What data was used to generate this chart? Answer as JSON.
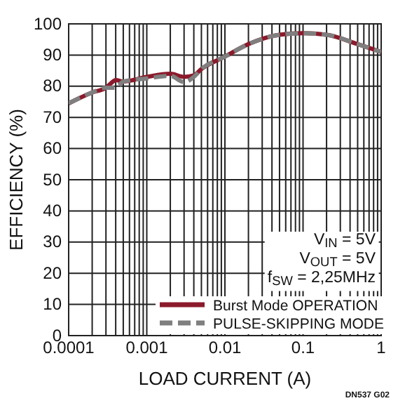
{
  "chart_data": {
    "type": "line",
    "xlabel": "LOAD CURRENT (A)",
    "ylabel": "EFFICIENCY (%)",
    "log": "x",
    "grid": true,
    "legend": "bottom right",
    "line_style": "solid",
    "marker": "none",
    "xlim": [
      0.0001,
      1
    ],
    "ylim": [
      0,
      100
    ],
    "xticks": [
      {
        "value": 0.0001,
        "label": "0.0001"
      },
      {
        "value": 0.0002,
        "label": null
      },
      {
        "value": 0.0003,
        "label": null
      },
      {
        "value": 0.0004,
        "label": null
      },
      {
        "value": 0.0005,
        "label": null
      },
      {
        "value": 0.0006,
        "label": null
      },
      {
        "value": 0.0007,
        "label": null
      },
      {
        "value": 0.0008,
        "label": null
      },
      {
        "value": 0.0009,
        "label": null
      },
      {
        "value": 0.001,
        "label": "0.001"
      },
      {
        "value": 0.002,
        "label": null
      },
      {
        "value": 0.003,
        "label": null
      },
      {
        "value": 0.004,
        "label": null
      },
      {
        "value": 0.005,
        "label": null
      },
      {
        "value": 0.006,
        "label": null
      },
      {
        "value": 0.007,
        "label": null
      },
      {
        "value": 0.008,
        "label": null
      },
      {
        "value": 0.009,
        "label": null
      },
      {
        "value": 0.01,
        "label": "0.01"
      },
      {
        "value": 0.02,
        "label": null
      },
      {
        "value": 0.03,
        "label": null
      },
      {
        "value": 0.04,
        "label": null
      },
      {
        "value": 0.05,
        "label": null
      },
      {
        "value": 0.06,
        "label": null
      },
      {
        "value": 0.07,
        "label": null
      },
      {
        "value": 0.08,
        "label": null
      },
      {
        "value": 0.09,
        "label": null
      },
      {
        "value": 0.1,
        "label": "0.1"
      },
      {
        "value": 0.2,
        "label": null
      },
      {
        "value": 0.3,
        "label": null
      },
      {
        "value": 0.4,
        "label": null
      },
      {
        "value": 0.5,
        "label": null
      },
      {
        "value": 0.6,
        "label": null
      },
      {
        "value": 0.7,
        "label": null
      },
      {
        "value": 0.8,
        "label": null
      },
      {
        "value": 0.9,
        "label": null
      },
      {
        "value": 1,
        "label": "1"
      }
    ],
    "yticks": [
      0,
      10,
      20,
      30,
      40,
      50,
      60,
      70,
      80,
      90,
      100
    ],
    "series": [
      {
        "name": "Burst Mode OPERATION",
        "color": "#8b1a2b",
        "x": [
          0.0001,
          0.0002,
          0.0003,
          0.00035,
          0.0004,
          0.0005,
          0.001,
          0.002,
          0.003,
          0.004,
          0.005,
          0.01,
          0.02,
          0.05,
          0.1,
          0.2,
          0.5,
          1
        ],
        "values": [
          74.5,
          78,
          79.5,
          81,
          82,
          81.5,
          83,
          84,
          83,
          83.5,
          85.5,
          89.5,
          93.5,
          96.5,
          97,
          96.5,
          93.5,
          91
        ]
      },
      {
        "name": "PULSE-SKIPPING MODE",
        "color": "#7f7f7f",
        "line_style": "dashed",
        "x": [
          0.0001,
          0.0002,
          0.0003,
          0.0004,
          0.0005,
          0.001,
          0.002,
          0.003,
          0.004,
          0.005,
          0.01,
          0.02,
          0.05,
          0.1,
          0.2,
          0.5,
          1
        ],
        "values": [
          74.5,
          78,
          79.5,
          79.5,
          81.5,
          82.5,
          83.3,
          81.3,
          83,
          85.5,
          89.5,
          93.5,
          96.5,
          97,
          96.5,
          93.5,
          91
        ]
      }
    ],
    "annotations": [
      "V$_{IN}$ = 5V",
      "V$_{OUT}$ = 5V",
      "f$_{SW}$ = 2,25MHz",
      "DN537 G02"
    ]
  }
}
